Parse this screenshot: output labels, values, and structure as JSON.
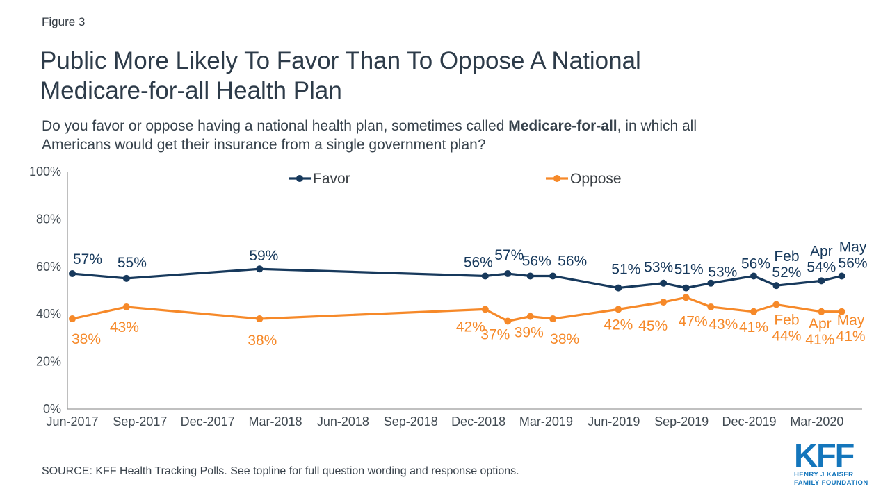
{
  "page": {
    "figure_label": "Figure 3",
    "title_line1": "Public More Likely To Favor Than To Oppose A National",
    "title_line2": "Medicare-for-all Health Plan",
    "subtitle_prefix": "Do you favor or oppose having a national health plan, sometimes called ",
    "subtitle_bold": "Medicare-for-all",
    "subtitle_suffix": ", in which all",
    "subtitle_line2": "Americans would get their insurance from a single government plan?",
    "source": "SOURCE: KFF Health Tracking Polls. See topline for full question wording and response options."
  },
  "logo": {
    "acronym": "KFF",
    "line1": "HENRY J KAISER",
    "line2": "FAMILY FOUNDATION"
  },
  "colors": {
    "favor": "#17395c",
    "oppose": "#f68929",
    "axis": "#9b9b9b",
    "axis_text": "#414a52",
    "legend_text": "#3a3f44",
    "kff_blue": "#1476bc"
  },
  "chart_data": {
    "type": "line",
    "title": "",
    "xlabel": "",
    "ylabel": "",
    "grid": false,
    "legend_position": "top",
    "y_axis": {
      "ylim": [
        0,
        100
      ],
      "tick_values": [
        0,
        20,
        40,
        60,
        80,
        100
      ],
      "tick_labels": [
        "0%",
        "20%",
        "40%",
        "60%",
        "80%",
        "100%"
      ]
    },
    "x_axis": {
      "unit": "months since Jun-2017",
      "tick_months": [
        0,
        3,
        6,
        9,
        12,
        15,
        18,
        21,
        24,
        27,
        30,
        33
      ],
      "tick_labels": [
        "Jun-2017",
        "Sep-2017",
        "Dec-2017",
        "Mar-2018",
        "Jun-2018",
        "Sep-2018",
        "Dec-2018",
        "Mar-2019",
        "Jun-2019",
        "Sep-2019",
        "Dec-2019",
        "Mar-2020"
      ]
    },
    "series": [
      {
        "name": "Favor",
        "color": "#17395c",
        "x_months": [
          0,
          2.4,
          8.3,
          18.3,
          19.3,
          20.3,
          21.3,
          24.2,
          26.2,
          27.2,
          28.3,
          30.2,
          31.2,
          33.2,
          34.1
        ],
        "values": [
          57,
          55,
          59,
          56,
          57,
          56,
          56,
          51,
          53,
          51,
          53,
          56,
          52,
          54,
          56
        ],
        "point_labels": [
          [
            "57%"
          ],
          [
            "55%"
          ],
          [
            "59%"
          ],
          [
            "56%"
          ],
          [
            "57%"
          ],
          [
            "56%"
          ],
          [
            "56%"
          ],
          [
            "51%"
          ],
          [
            "53%"
          ],
          [
            "51%"
          ],
          [
            "53%"
          ],
          [
            "56%"
          ],
          [
            "Feb",
            "52%"
          ],
          [
            "Apr",
            "54%"
          ],
          [
            "May",
            "56%"
          ]
        ]
      },
      {
        "name": "Oppose",
        "color": "#f68929",
        "x_months": [
          0,
          2.4,
          8.3,
          18.3,
          19.3,
          20.3,
          21.3,
          24.2,
          26.2,
          27.2,
          28.3,
          30.2,
          31.2,
          33.2,
          34.1
        ],
        "values": [
          38,
          43,
          38,
          42,
          37,
          39,
          38,
          42,
          45,
          47,
          43,
          41,
          44,
          41,
          41
        ],
        "point_labels": [
          [
            "38%"
          ],
          [
            "43%"
          ],
          [
            "38%"
          ],
          [
            "42%"
          ],
          [
            "37%"
          ],
          [
            "39%"
          ],
          [
            "38%"
          ],
          [
            "42%"
          ],
          [
            "45%"
          ],
          [
            "47%"
          ],
          [
            "43%"
          ],
          [
            "41%"
          ],
          [
            "Feb",
            "44%"
          ],
          [
            "Apr",
            "41%"
          ],
          [
            "May",
            "41%"
          ]
        ]
      }
    ]
  }
}
